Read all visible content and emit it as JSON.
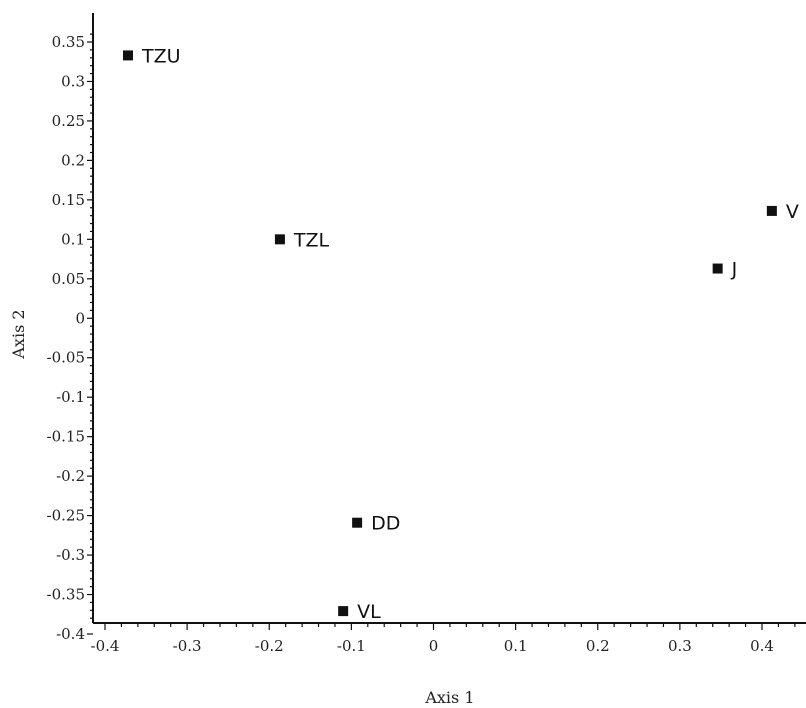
{
  "chart_data": {
    "type": "scatter",
    "title": "",
    "xlabel": "Axis 1",
    "ylabel": "Axis 2",
    "xlim": [
      -0.42,
      0.455
    ],
    "ylim": [
      -0.41,
      0.37
    ],
    "grid": false,
    "legend": "none",
    "x_ticks": [
      -0.4,
      -0.3,
      -0.2,
      -0.1,
      0,
      0.1,
      0.2,
      0.3,
      0.4
    ],
    "x_tick_labels": [
      "-0.4",
      "-0.3",
      "-0.2",
      "-0.1",
      "0",
      "0.1",
      "0.2",
      "0.3",
      "0.4"
    ],
    "y_ticks": [
      0.35,
      0.3,
      0.25,
      0.2,
      0.15,
      0.1,
      0.05,
      0,
      -0.05,
      -0.1,
      -0.15,
      -0.2,
      -0.25,
      -0.3,
      -0.35,
      -0.4
    ],
    "y_tick_labels": [
      "0.35",
      "0.3",
      "0.25",
      "0.2",
      "0.15",
      "0.1",
      "0.05",
      "0",
      "-0.05",
      "-0.1",
      "-0.15",
      "-0.2",
      "-0.25",
      "-0.3",
      "-0.35",
      "-0.4"
    ],
    "points": [
      {
        "label": "TZU",
        "x": -0.372,
        "y": 0.333
      },
      {
        "label": "TZL",
        "x": -0.187,
        "y": 0.1
      },
      {
        "label": "V",
        "x": 0.412,
        "y": 0.136
      },
      {
        "label": "J",
        "x": 0.346,
        "y": 0.063
      },
      {
        "label": "DD",
        "x": -0.093,
        "y": -0.259
      },
      {
        "label": "VL",
        "x": -0.11,
        "y": -0.371
      }
    ],
    "marker_color": "#111111"
  }
}
